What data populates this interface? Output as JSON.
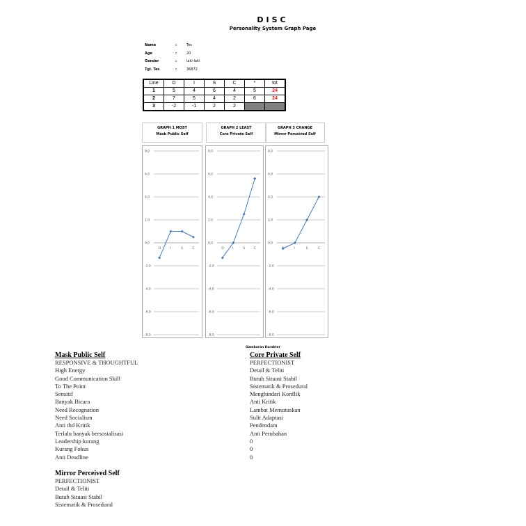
{
  "header": {
    "title": "DISC",
    "subtitle": "Personality System Graph Page"
  },
  "info": [
    {
      "label": "Name",
      "sep": ":",
      "value": "Tes"
    },
    {
      "label": "Age",
      "sep": ":",
      "value": "20"
    },
    {
      "label": "Gender",
      "sep": ":",
      "value": "laki-laki"
    },
    {
      "label": "Tgl. Tes",
      "sep": ":",
      "value": "36872"
    }
  ],
  "table": {
    "headers": [
      "Line",
      "D",
      "I",
      "S",
      "C",
      "*",
      "tot"
    ],
    "rows": [
      [
        "1",
        "5",
        "4",
        "6",
        "4",
        "5",
        "24"
      ],
      [
        "2",
        "7",
        "5",
        "4",
        "2",
        "6",
        "24"
      ],
      [
        "3",
        "-2",
        "-1",
        "2",
        "2",
        "",
        ""
      ]
    ]
  },
  "graphs": [
    {
      "line1": "GRAPH  1  MOST",
      "line2": "Mask Public Self"
    },
    {
      "line1": "GRAPH  2  LEAST",
      "line2": "Core Private Self"
    },
    {
      "line1": "GRAPH  3  CHANGE",
      "line2": "Mirror Perceived Self"
    }
  ],
  "chart_data": [
    {
      "type": "line",
      "categories": [
        "D",
        "I",
        "S",
        "C"
      ],
      "values": [
        -1.3,
        1.0,
        1.0,
        0.5
      ],
      "ylim": [
        -8,
        8
      ],
      "yticks": [
        "8,0",
        "6,0",
        "4,0",
        "2,0",
        "0,0",
        "-2,0",
        "-4,0",
        "-6,0",
        "-8,0"
      ],
      "grid": true,
      "color": "#4a78b0"
    },
    {
      "type": "line",
      "categories": [
        "D",
        "I",
        "S",
        "C"
      ],
      "values": [
        -1.3,
        0.0,
        2.5,
        5.6
      ],
      "ylim": [
        -8,
        8
      ],
      "yticks": [
        "8,0",
        "6,0",
        "4,0",
        "2,0",
        "0,0",
        "-2,0",
        "-4,0",
        "-6,0",
        "-8,0"
      ],
      "grid": true,
      "color": "#4a78b0"
    },
    {
      "type": "line",
      "categories": [
        "D",
        "I",
        "S",
        "C"
      ],
      "values": [
        -0.5,
        0.0,
        2.0,
        4.0
      ],
      "ylim": [
        -8,
        8
      ],
      "yticks": [
        "8,0",
        "6,0",
        "4,0",
        "2,0",
        "0,0",
        "-2,0",
        "-4,0",
        "-6,0",
        "-8,0"
      ],
      "grid": true,
      "color": "#4a78b0"
    }
  ],
  "caption": "Gambaran Karakter",
  "mask": {
    "heading": "Mask Public Self",
    "items": [
      "RESPONSIVE & THOUGHTFUL",
      "High Energy",
      "Good Communication Skill",
      "To The Point",
      "Sensitif",
      "Banyak Bicara",
      "Need Recognation",
      "Need Socialism",
      "Anti thd Kritik",
      "Terlalu banyak bersosialisasi",
      "Leadership kurang",
      "Kurang Fokus",
      "Anti Deadline"
    ]
  },
  "core": {
    "heading": "Core Private Self",
    "items": [
      "PERFECTIONIST",
      "Detail & Teliti",
      "Butuh Situasi Stabil",
      "Sistematik & Prosedural",
      "Menghindari Konflik",
      "Anti Kritik",
      "Lambat Memutuskan",
      "Sulit Adaptasi",
      "Pendendam",
      "Anti Perubahan",
      "0",
      "0",
      "0"
    ]
  },
  "mirror": {
    "heading": "Mirror Perceived Self",
    "items": [
      "PERFECTIONIST",
      "Detail & Teliti",
      "Butuh Situasi Stabil",
      "Sistematik & Prosedural"
    ]
  }
}
